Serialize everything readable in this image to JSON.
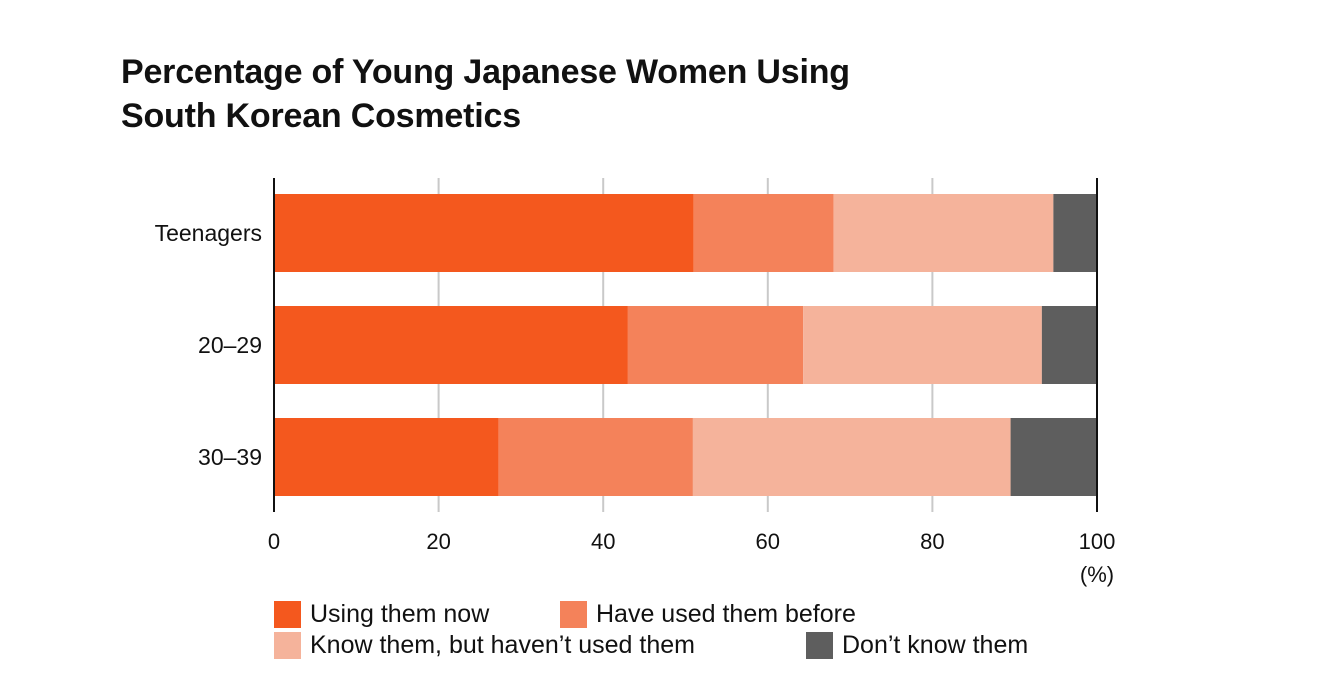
{
  "chart_data": {
    "type": "bar",
    "orientation": "horizontal",
    "stacked": true,
    "title": [
      "Percentage of Young Japanese Women Using",
      "South Korean Cosmetics"
    ],
    "categories": [
      "Teenagers",
      "20–29",
      "30–39"
    ],
    "series": [
      {
        "name": "Using them now",
        "color": "#F4581E",
        "values": [
          51,
          43,
          27.3
        ]
      },
      {
        "name": "Have used them before",
        "color": "#F4825A",
        "values": [
          17,
          21.3,
          23.6
        ]
      },
      {
        "name": "Know them, but haven’t used them",
        "color": "#F5B39B",
        "values": [
          26.7,
          29,
          38.6
        ]
      },
      {
        "name": "Don’t know them",
        "color": "#5E5E5E",
        "values": [
          5.3,
          6.7,
          10.5
        ]
      }
    ],
    "xlim": [
      0,
      100
    ],
    "xticks": [
      0,
      20,
      40,
      60,
      80,
      100
    ],
    "xunit": "(%)",
    "grid": true,
    "legend_position": "bottom"
  }
}
